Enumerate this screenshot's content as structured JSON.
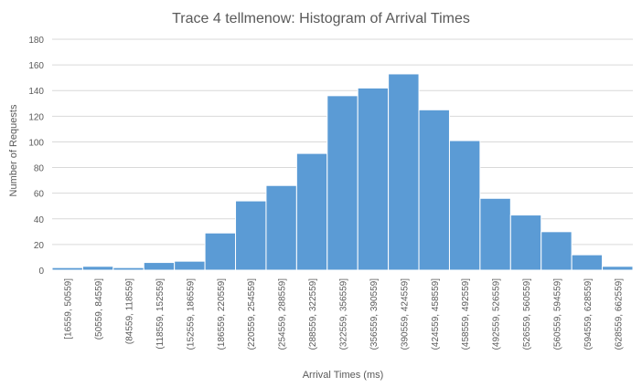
{
  "chart_data": {
    "type": "bar",
    "title": "Trace 4 tellmenow: Histogram of Arrival Times",
    "xlabel": "Arrival Times (ms)",
    "ylabel": "Number of Requests",
    "ylim": [
      0,
      180
    ],
    "yticks": [
      0,
      20,
      40,
      60,
      80,
      100,
      120,
      140,
      160,
      180
    ],
    "grid": true,
    "legend": "none",
    "bar_color": "#5b9bd5",
    "categories": [
      "[16559, 50559]",
      "(50559, 84559]",
      "(84559, 118559]",
      "(118559, 152559]",
      "(152559, 186559]",
      "(186559, 220559]",
      "(220559, 254559]",
      "(254559, 288559]",
      "(288559, 322559]",
      "(322559, 356559]",
      "(356559, 390559]",
      "(390559, 424559]",
      "(424559, 458559]",
      "(458559, 492559]",
      "(492559, 526559]",
      "(526559, 560559]",
      "(560559, 594559]",
      "(594559, 628559]",
      "(628559, 662559]"
    ],
    "values": [
      2,
      3,
      2,
      6,
      7,
      29,
      54,
      66,
      91,
      136,
      142,
      153,
      125,
      101,
      56,
      43,
      30,
      12,
      3
    ]
  }
}
